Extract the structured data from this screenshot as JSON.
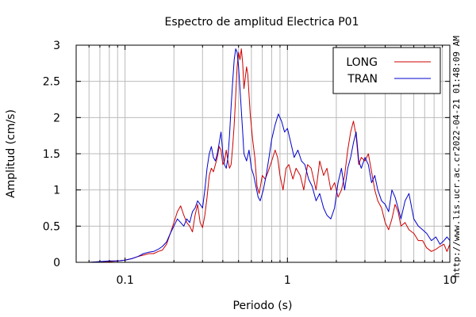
{
  "chart_data": {
    "type": "line",
    "title": "Espectro de amplitud Electrica P01",
    "xlabel": "Periodo (s)",
    "ylabel": "Amplitud (cm/s)",
    "x_scale": "log",
    "xlim": [
      0.05,
      10
    ],
    "ylim": [
      0,
      3
    ],
    "x_ticks": [
      {
        "value": 0.1,
        "label": "0.1"
      },
      {
        "value": 1,
        "label": "1"
      },
      {
        "value": 10,
        "label": "10"
      }
    ],
    "y_ticks": [
      {
        "value": 0,
        "label": "0"
      },
      {
        "value": 0.5,
        "label": "0.5"
      },
      {
        "value": 1,
        "label": "1"
      },
      {
        "value": 1.5,
        "label": "1.5"
      },
      {
        "value": 2,
        "label": "2"
      },
      {
        "value": 2.5,
        "label": "2.5"
      },
      {
        "value": 3,
        "label": "3"
      }
    ],
    "grid": true,
    "legend_position": "top-right",
    "timestamp": "2022-04-21 01:48:09 AM",
    "source": "http://www.lis.ucr.ac.cr",
    "series": [
      {
        "name": "LONG",
        "color": "#cc0000",
        "points": [
          [
            0.05,
            0.0
          ],
          [
            0.06,
            0.0
          ],
          [
            0.07,
            0.01
          ],
          [
            0.08,
            0.01
          ],
          [
            0.09,
            0.02
          ],
          [
            0.1,
            0.03
          ],
          [
            0.11,
            0.05
          ],
          [
            0.12,
            0.08
          ],
          [
            0.13,
            0.1
          ],
          [
            0.14,
            0.12
          ],
          [
            0.15,
            0.12
          ],
          [
            0.16,
            0.15
          ],
          [
            0.17,
            0.17
          ],
          [
            0.18,
            0.25
          ],
          [
            0.19,
            0.4
          ],
          [
            0.2,
            0.55
          ],
          [
            0.21,
            0.7
          ],
          [
            0.22,
            0.78
          ],
          [
            0.23,
            0.65
          ],
          [
            0.24,
            0.55
          ],
          [
            0.25,
            0.5
          ],
          [
            0.26,
            0.42
          ],
          [
            0.27,
            0.65
          ],
          [
            0.28,
            0.8
          ],
          [
            0.29,
            0.55
          ],
          [
            0.3,
            0.48
          ],
          [
            0.31,
            0.65
          ],
          [
            0.32,
            0.9
          ],
          [
            0.33,
            1.2
          ],
          [
            0.34,
            1.3
          ],
          [
            0.35,
            1.25
          ],
          [
            0.36,
            1.35
          ],
          [
            0.37,
            1.45
          ],
          [
            0.38,
            1.6
          ],
          [
            0.39,
            1.55
          ],
          [
            0.4,
            1.35
          ],
          [
            0.41,
            1.4
          ],
          [
            0.42,
            1.55
          ],
          [
            0.43,
            1.4
          ],
          [
            0.44,
            1.3
          ],
          [
            0.45,
            1.35
          ],
          [
            0.46,
            1.6
          ],
          [
            0.47,
            1.9
          ],
          [
            0.48,
            2.3
          ],
          [
            0.49,
            2.7
          ],
          [
            0.5,
            2.9
          ],
          [
            0.51,
            2.8
          ],
          [
            0.52,
            2.95
          ],
          [
            0.53,
            2.75
          ],
          [
            0.54,
            2.4
          ],
          [
            0.55,
            2.55
          ],
          [
            0.56,
            2.7
          ],
          [
            0.57,
            2.6
          ],
          [
            0.59,
            2.05
          ],
          [
            0.61,
            1.7
          ],
          [
            0.63,
            1.45
          ],
          [
            0.65,
            1.05
          ],
          [
            0.67,
            0.95
          ],
          [
            0.7,
            1.2
          ],
          [
            0.73,
            1.15
          ],
          [
            0.76,
            1.25
          ],
          [
            0.8,
            1.4
          ],
          [
            0.84,
            1.55
          ],
          [
            0.87,
            1.45
          ],
          [
            0.9,
            1.2
          ],
          [
            0.94,
            1.0
          ],
          [
            0.98,
            1.3
          ],
          [
            1.02,
            1.35
          ],
          [
            1.08,
            1.15
          ],
          [
            1.13,
            1.3
          ],
          [
            1.2,
            1.2
          ],
          [
            1.26,
            1.0
          ],
          [
            1.33,
            1.35
          ],
          [
            1.4,
            1.3
          ],
          [
            1.5,
            1.0
          ],
          [
            1.58,
            1.4
          ],
          [
            1.67,
            1.2
          ],
          [
            1.75,
            1.3
          ],
          [
            1.85,
            1.0
          ],
          [
            1.95,
            1.1
          ],
          [
            2.05,
            0.9
          ],
          [
            2.15,
            1.0
          ],
          [
            2.25,
            1.2
          ],
          [
            2.35,
            1.55
          ],
          [
            2.45,
            1.8
          ],
          [
            2.55,
            1.95
          ],
          [
            2.65,
            1.75
          ],
          [
            2.75,
            1.35
          ],
          [
            2.85,
            1.45
          ],
          [
            3.0,
            1.4
          ],
          [
            3.15,
            1.5
          ],
          [
            3.3,
            1.25
          ],
          [
            3.45,
            1.0
          ],
          [
            3.6,
            0.85
          ],
          [
            3.8,
            0.75
          ],
          [
            4.0,
            0.55
          ],
          [
            4.2,
            0.45
          ],
          [
            4.4,
            0.6
          ],
          [
            4.6,
            0.8
          ],
          [
            4.8,
            0.7
          ],
          [
            5.0,
            0.5
          ],
          [
            5.3,
            0.55
          ],
          [
            5.6,
            0.45
          ],
          [
            6.0,
            0.4
          ],
          [
            6.4,
            0.3
          ],
          [
            6.8,
            0.3
          ],
          [
            7.2,
            0.2
          ],
          [
            7.7,
            0.15
          ],
          [
            8.2,
            0.18
          ],
          [
            8.7,
            0.22
          ],
          [
            9.2,
            0.25
          ],
          [
            9.6,
            0.15
          ],
          [
            10.0,
            0.25
          ]
        ]
      },
      {
        "name": "TRAN",
        "color": "#0000cc",
        "points": [
          [
            0.05,
            0.0
          ],
          [
            0.06,
            0.0
          ],
          [
            0.07,
            0.01
          ],
          [
            0.08,
            0.02
          ],
          [
            0.09,
            0.02
          ],
          [
            0.1,
            0.03
          ],
          [
            0.11,
            0.05
          ],
          [
            0.12,
            0.08
          ],
          [
            0.13,
            0.12
          ],
          [
            0.14,
            0.14
          ],
          [
            0.15,
            0.15
          ],
          [
            0.16,
            0.18
          ],
          [
            0.17,
            0.22
          ],
          [
            0.18,
            0.28
          ],
          [
            0.19,
            0.4
          ],
          [
            0.2,
            0.5
          ],
          [
            0.21,
            0.6
          ],
          [
            0.22,
            0.55
          ],
          [
            0.23,
            0.5
          ],
          [
            0.24,
            0.6
          ],
          [
            0.25,
            0.55
          ],
          [
            0.26,
            0.7
          ],
          [
            0.27,
            0.75
          ],
          [
            0.28,
            0.85
          ],
          [
            0.29,
            0.8
          ],
          [
            0.3,
            0.75
          ],
          [
            0.31,
            1.0
          ],
          [
            0.32,
            1.3
          ],
          [
            0.33,
            1.5
          ],
          [
            0.34,
            1.6
          ],
          [
            0.35,
            1.45
          ],
          [
            0.36,
            1.4
          ],
          [
            0.37,
            1.5
          ],
          [
            0.38,
            1.65
          ],
          [
            0.39,
            1.8
          ],
          [
            0.4,
            1.5
          ],
          [
            0.41,
            1.35
          ],
          [
            0.42,
            1.3
          ],
          [
            0.43,
            1.45
          ],
          [
            0.44,
            1.75
          ],
          [
            0.45,
            2.15
          ],
          [
            0.46,
            2.5
          ],
          [
            0.47,
            2.8
          ],
          [
            0.48,
            2.95
          ],
          [
            0.49,
            2.9
          ],
          [
            0.5,
            2.7
          ],
          [
            0.51,
            2.4
          ],
          [
            0.52,
            2.1
          ],
          [
            0.53,
            1.8
          ],
          [
            0.54,
            1.5
          ],
          [
            0.56,
            1.4
          ],
          [
            0.58,
            1.55
          ],
          [
            0.6,
            1.3
          ],
          [
            0.62,
            1.2
          ],
          [
            0.64,
            1.05
          ],
          [
            0.66,
            0.9
          ],
          [
            0.68,
            0.85
          ],
          [
            0.71,
            1.0
          ],
          [
            0.74,
            1.2
          ],
          [
            0.77,
            1.45
          ],
          [
            0.8,
            1.7
          ],
          [
            0.84,
            1.9
          ],
          [
            0.88,
            2.05
          ],
          [
            0.92,
            1.95
          ],
          [
            0.96,
            1.8
          ],
          [
            1.0,
            1.85
          ],
          [
            1.05,
            1.65
          ],
          [
            1.1,
            1.45
          ],
          [
            1.16,
            1.55
          ],
          [
            1.22,
            1.4
          ],
          [
            1.28,
            1.35
          ],
          [
            1.35,
            1.15
          ],
          [
            1.42,
            1.05
          ],
          [
            1.5,
            0.85
          ],
          [
            1.58,
            0.95
          ],
          [
            1.67,
            0.75
          ],
          [
            1.75,
            0.65
          ],
          [
            1.85,
            0.6
          ],
          [
            1.95,
            0.75
          ],
          [
            2.05,
            1.1
          ],
          [
            2.15,
            1.3
          ],
          [
            2.25,
            1.0
          ],
          [
            2.35,
            1.3
          ],
          [
            2.45,
            1.45
          ],
          [
            2.55,
            1.65
          ],
          [
            2.65,
            1.8
          ],
          [
            2.75,
            1.4
          ],
          [
            2.85,
            1.3
          ],
          [
            3.0,
            1.45
          ],
          [
            3.15,
            1.35
          ],
          [
            3.3,
            1.1
          ],
          [
            3.45,
            1.2
          ],
          [
            3.6,
            1.0
          ],
          [
            3.8,
            0.85
          ],
          [
            4.0,
            0.8
          ],
          [
            4.2,
            0.7
          ],
          [
            4.4,
            1.0
          ],
          [
            4.6,
            0.9
          ],
          [
            4.8,
            0.75
          ],
          [
            5.0,
            0.6
          ],
          [
            5.3,
            0.85
          ],
          [
            5.6,
            0.95
          ],
          [
            6.0,
            0.6
          ],
          [
            6.4,
            0.5
          ],
          [
            6.8,
            0.45
          ],
          [
            7.2,
            0.4
          ],
          [
            7.7,
            0.3
          ],
          [
            8.2,
            0.35
          ],
          [
            8.7,
            0.25
          ],
          [
            9.2,
            0.3
          ],
          [
            9.6,
            0.35
          ],
          [
            10.0,
            0.3
          ]
        ]
      }
    ]
  }
}
